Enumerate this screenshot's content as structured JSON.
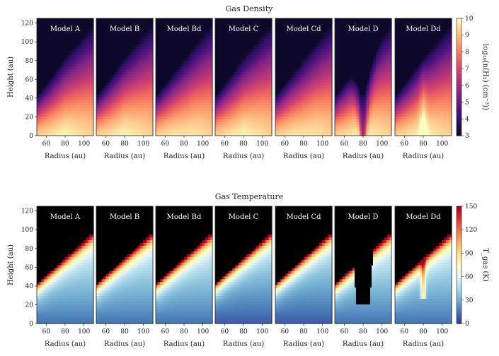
{
  "chart_data": [
    {
      "type": "heatmap",
      "title": "Gas Density",
      "panels": [
        "Model  A",
        "Model  B",
        "Model  Bd",
        "Model  C",
        "Model  Cd",
        "Model  D",
        "Model  Dd"
      ],
      "xlabel": "Radius  (au)",
      "ylabel": "Height  (au)",
      "xlim": [
        50,
        110
      ],
      "ylim": [
        0,
        125
      ],
      "xticks": [
        60,
        80,
        100
      ],
      "yticks": [
        0,
        20,
        40,
        60,
        80,
        100,
        120
      ],
      "colorbar": {
        "label": "log₁₀(n(H₂)  (cm⁻³))",
        "range": [
          3,
          10
        ],
        "ticks": [
          3,
          4,
          5,
          6,
          7,
          8,
          9,
          10
        ],
        "colormap": [
          "#0d0829",
          "#2a1163",
          "#51127c",
          "#7b2382",
          "#a3307e",
          "#cf4070",
          "#f06960",
          "#fd9a6a",
          "#fecb8d",
          "#fcfdbf"
        ]
      }
    },
    {
      "type": "heatmap",
      "title": "Gas Temperature",
      "panels": [
        "Model  A",
        "Model  B",
        "Model  Bd",
        "Model  C",
        "Model  Cd",
        "Model  D",
        "Model  Dd"
      ],
      "xlabel": "Radius  (au)",
      "ylabel": "Height  (au)",
      "xlim": [
        50,
        110
      ],
      "ylim": [
        0,
        125
      ],
      "xticks": [
        60,
        80,
        100
      ],
      "yticks": [
        0,
        20,
        40,
        60,
        80,
        100,
        120
      ],
      "colorbar": {
        "label": "T_gas  (K)",
        "range": [
          0,
          150
        ],
        "ticks": [
          0,
          30,
          60,
          90,
          120,
          150
        ],
        "colormap": [
          "#313695",
          "#4575b4",
          "#74add1",
          "#abd9e9",
          "#e0f3f8",
          "#ffffbf",
          "#fee090",
          "#fdae61",
          "#f46d43",
          "#d73027",
          "#a50026"
        ]
      }
    }
  ]
}
